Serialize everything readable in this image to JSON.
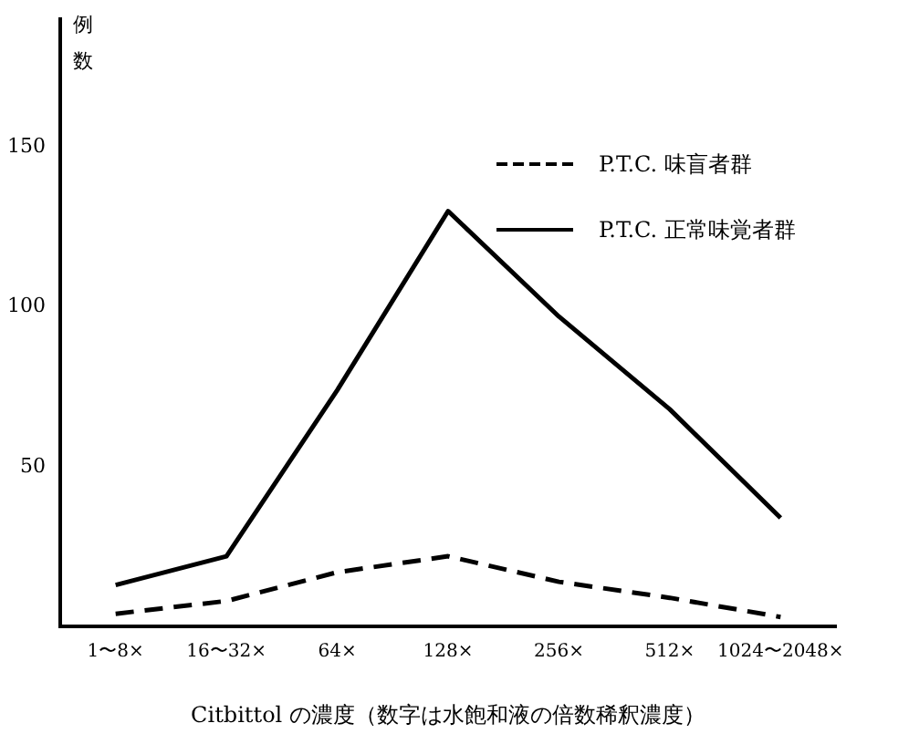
{
  "chart_data": {
    "type": "line",
    "xlabel": "Citbittol の濃度（数字は水飽和液の倍数稀釈濃度）",
    "ylabel": "例数",
    "categories": [
      "1〜8×",
      "16〜32×",
      "64×",
      "128×",
      "256×",
      "512×",
      "1024〜2048×"
    ],
    "series": [
      {
        "name": "P.T.C. 味盲者群",
        "color": "#000000",
        "line_style": "dashed",
        "values": [
          4,
          8,
          17,
          22,
          14,
          9,
          3
        ]
      },
      {
        "name": "P.T.C. 正常味覚者群",
        "color": "#000000",
        "line_style": "solid",
        "values": [
          13,
          22,
          74,
          130,
          97,
          68,
          34
        ]
      }
    ],
    "ylim": [
      0,
      190
    ],
    "yticks": [
      50,
      100,
      150
    ],
    "grid": false,
    "legend": "top right"
  }
}
